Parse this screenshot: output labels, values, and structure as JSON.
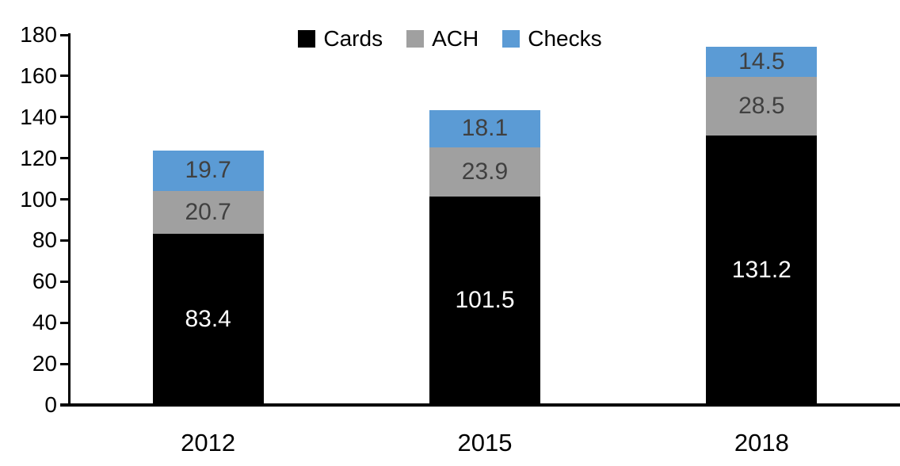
{
  "chart_data": {
    "type": "bar",
    "stacked": true,
    "title": "",
    "categories": [
      "2012",
      "2015",
      "2018"
    ],
    "series": [
      {
        "name": "Cards",
        "values": [
          83.4,
          101.5,
          131.2
        ],
        "color": "#000000",
        "label_color": "#ffffff"
      },
      {
        "name": "ACH",
        "values": [
          20.7,
          23.9,
          28.5
        ],
        "color": "#a0a0a0",
        "label_color": "#404040"
      },
      {
        "name": "Checks",
        "values": [
          19.7,
          18.1,
          14.5
        ],
        "color": "#5b9bd5",
        "label_color": "#404040"
      }
    ],
    "xlabel": "",
    "ylabel": "",
    "ylim": [
      0,
      180
    ],
    "ytick_step": 20,
    "ytick_labels": [
      "0",
      "20",
      "40",
      "60",
      "80",
      "100",
      "120",
      "140",
      "160",
      "180"
    ],
    "grid": false,
    "legend_position": "top",
    "axis_color": "#000000"
  }
}
